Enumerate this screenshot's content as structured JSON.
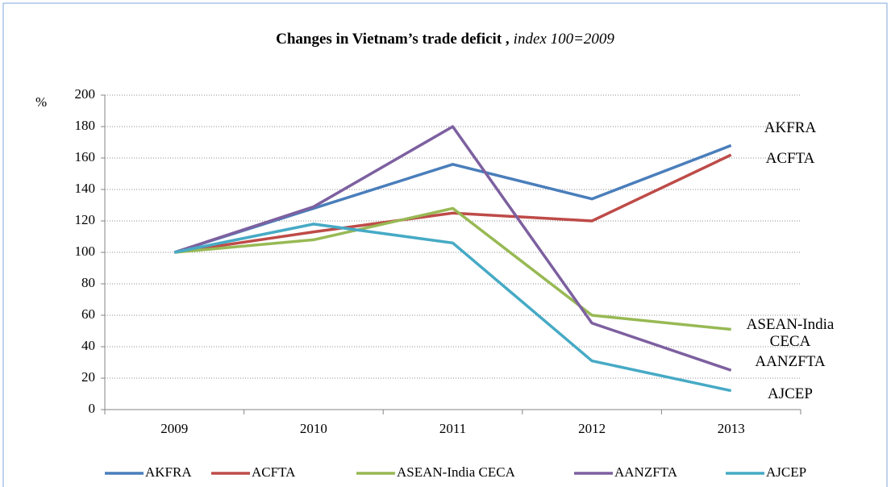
{
  "chart_data": {
    "type": "line",
    "title": "Changes in Vietnam’s trade deficit ,",
    "subtitle": "index 100=2009",
    "y_label": "%",
    "categories": [
      "2009",
      "2010",
      "2011",
      "2012",
      "2013"
    ],
    "series": [
      {
        "name": "AKFRA",
        "color": "#4a7ebb",
        "values": [
          100,
          128,
          156,
          134,
          168
        ]
      },
      {
        "name": "ACFTA",
        "color": "#be4b48",
        "values": [
          100,
          113,
          125,
          120,
          162
        ]
      },
      {
        "name": "ASEAN-India CECA",
        "color": "#98b954",
        "values": [
          100,
          108,
          128,
          60,
          51
        ]
      },
      {
        "name": "AANZFTA",
        "color": "#7d60a0",
        "values": [
          100,
          129,
          180,
          55,
          25
        ]
      },
      {
        "name": "AJCEP",
        "color": "#46aac5",
        "values": [
          100,
          118,
          106,
          31,
          12
        ]
      }
    ],
    "annotations": [
      [
        "AKFRA"
      ],
      [
        "ACFTA"
      ],
      [
        "ASEAN-India",
        "CECA"
      ],
      [
        "AANZFTA"
      ],
      [
        "AJCEP"
      ]
    ],
    "ylim": [
      0,
      200
    ],
    "yticks": [
      0,
      20,
      40,
      60,
      80,
      100,
      120,
      140,
      160,
      180,
      200
    ],
    "grid": true,
    "legend": "bottom"
  }
}
